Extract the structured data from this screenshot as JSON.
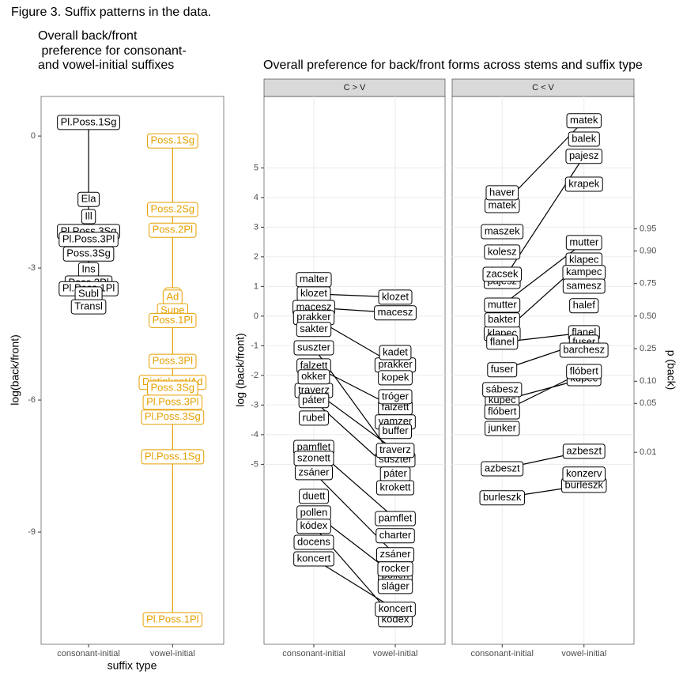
{
  "figure_title": "Figure 3. Suffix patterns in the data.",
  "chart_data": [
    {
      "type": "violin",
      "title_lines": [
        "Overall back/front",
        " preference for consonant-",
        "and vowel-initial suffixes"
      ],
      "x_label": "suffix type",
      "y_label": "log(back/front)",
      "categories": [
        "consonant-initial",
        "vowel-initial"
      ],
      "ylim": [
        -11.55,
        0.9
      ],
      "yticks": [
        0,
        -3,
        -6,
        -9
      ],
      "grid": false,
      "groups": [
        {
          "color": "#000000",
          "labels": [
            "Pl.Poss.1Sg",
            "Ela",
            "Ill",
            "Pl.Poss.3Sg",
            "Pl.Poss.3Pl",
            "Poss.3Sg",
            "Ins",
            "Poss.3Pl",
            "Pl.Poss.1Pl",
            "Subl",
            "Transl"
          ],
          "values": [
            0.31,
            -1.44,
            -1.83,
            -2.17,
            -2.35,
            -2.68,
            -3.04,
            -3.34,
            -3.47,
            -3.59,
            -3.88
          ]
        },
        {
          "color": "#E69F00",
          "labels": [
            "Poss.1Sg",
            "Poss.2Sg",
            "Poss.2Pl",
            "Pl",
            "Ad",
            "Supe",
            "Poss.1Pl",
            "Poss.3Pl",
            "Distinkent/Ad",
            "Poss.3Sg",
            "Pl.Poss.3Pl",
            "Pl.Poss.3Sg",
            "Pl.Poss.1Sg",
            "Pl.Poss.1Pl"
          ],
          "values": [
            -0.11,
            -1.67,
            -2.14,
            -3.61,
            -3.66,
            -3.97,
            -4.19,
            -5.12,
            -5.6,
            -5.73,
            -6.05,
            -6.39,
            -7.29,
            -10.99
          ]
        }
      ]
    },
    {
      "type": "slope",
      "title": "Overall preference for back/front forms across stems and suffix type",
      "y_label": "log (back/front)",
      "y2_label": "p (back)",
      "y2_transform": "logit",
      "categories": [
        "consonant-initial",
        "vowel-initial"
      ],
      "ylim": [
        -11.07,
        7.41
      ],
      "yticks": [
        5,
        4,
        3,
        2,
        1,
        0,
        -1,
        -2,
        -3,
        -4,
        -5
      ],
      "grid": true,
      "y2ticks": [
        0.95,
        {
          "value": 0.9,
          "label": "0.90"
        },
        0.75,
        {
          "value": 0.5,
          "label": "0.50"
        },
        0.25,
        {
          "value": 0.1,
          "label": "0.10"
        },
        0.05,
        0.01
      ],
      "facets": [
        {
          "name": "C > V",
          "stems": [
            {
              "name": "klozet",
              "values": [
                0.75,
                0.64
              ]
            },
            {
              "name": "macesz",
              "values": [
                0.29,
                0.11
              ]
            },
            {
              "name": "prakker",
              "values": [
                -0.05,
                -1.65
              ]
            },
            {
              "name": "suszter",
              "values": [
                -1.07,
                -4.85
              ]
            },
            {
              "name": "falzett",
              "values": [
                -1.68,
                -3.09
              ]
            },
            {
              "name": "traverz",
              "values": [
                -2.51,
                -4.53
              ]
            },
            {
              "name": "páter",
              "values": [
                -2.85,
                -5.33
              ]
            },
            {
              "name": "pamflet",
              "values": [
                -4.43,
                -6.83
              ]
            },
            {
              "name": "zsáner",
              "values": [
                -5.28,
                -8.05
              ]
            },
            {
              "name": "pollen",
              "values": [
                -6.64,
                -8.75
              ]
            },
            {
              "name": "kódex",
              "values": [
                -7.09,
                -10.24
              ]
            },
            {
              "name": "koncert",
              "values": [
                -8.19,
                -9.89
              ]
            },
            {
              "name": "malter",
              "values": [
                1.23,
                null
              ]
            },
            {
              "name": "sakter",
              "values": [
                -0.45,
                null
              ]
            },
            {
              "name": "okker",
              "values": [
                -2.05,
                null
              ]
            },
            {
              "name": "rubel",
              "values": [
                -3.44,
                null
              ]
            },
            {
              "name": "szonett",
              "values": [
                -4.8,
                null
              ]
            },
            {
              "name": "duett",
              "values": [
                -6.08,
                null
              ]
            },
            {
              "name": "docens",
              "values": [
                -7.63,
                null
              ]
            },
            {
              "name": "kadet",
              "values": [
                null,
                -1.23
              ]
            },
            {
              "name": "kopek",
              "values": [
                null,
                -2.08
              ]
            },
            {
              "name": "tróger",
              "values": [
                null,
                -2.72
              ]
            },
            {
              "name": "vamzer",
              "values": [
                null,
                -3.57
              ]
            },
            {
              "name": "buffer",
              "values": [
                null,
                -3.89
              ]
            },
            {
              "name": "krokett",
              "values": [
                null,
                -5.79
              ]
            },
            {
              "name": "charter",
              "values": [
                null,
                -7.41
              ]
            },
            {
              "name": "rocker",
              "values": [
                null,
                -8.53
              ]
            },
            {
              "name": "sláger",
              "values": [
                null,
                -9.12
              ]
            }
          ]
        },
        {
          "name": "C < V",
          "stems": [
            {
              "name": "matek",
              "values": [
                3.73,
                6.59
              ]
            },
            {
              "name": "pajesz",
              "values": [
                1.17,
                5.39
              ]
            },
            {
              "name": "mutter",
              "values": [
                0.37,
                2.48
              ]
            },
            {
              "name": "klapec",
              "values": [
                -0.59,
                1.89
              ]
            },
            {
              "name": "flanel",
              "values": [
                -0.88,
                -0.56
              ]
            },
            {
              "name": "fuser",
              "values": [
                -1.81,
                -0.88
              ]
            },
            {
              "name": "kupec",
              "values": [
                -2.85,
                -2.11
              ]
            },
            {
              "name": "flóbert",
              "values": [
                -3.23,
                -1.87
              ]
            },
            {
              "name": "azbeszt",
              "values": [
                -5.15,
                -4.56
              ]
            },
            {
              "name": "burleszk",
              "values": [
                -6.13,
                -5.71
              ]
            },
            {
              "name": "haver",
              "values": [
                4.16,
                null
              ]
            },
            {
              "name": "maszek",
              "values": [
                2.85,
                null
              ]
            },
            {
              "name": "kolesz",
              "values": [
                2.16,
                null
              ]
            },
            {
              "name": "zacsek",
              "values": [
                1.41,
                null
              ]
            },
            {
              "name": "bakter",
              "values": [
                -0.13,
                null
              ]
            },
            {
              "name": "sábesz",
              "values": [
                -2.48,
                null
              ]
            },
            {
              "name": "junker",
              "values": [
                -3.79,
                null
              ]
            },
            {
              "name": "balek",
              "values": [
                null,
                5.97
              ]
            },
            {
              "name": "krapek",
              "values": [
                null,
                4.45
              ]
            },
            {
              "name": "kampec",
              "values": [
                null,
                1.47
              ]
            },
            {
              "name": "samesz",
              "values": [
                null,
                1.01
              ]
            },
            {
              "name": "halef",
              "values": [
                null,
                0.35
              ]
            },
            {
              "name": "barchesz",
              "values": [
                null,
                -1.15
              ]
            },
            {
              "name": "konzerv",
              "values": [
                null,
                -5.33
              ]
            }
          ]
        }
      ]
    }
  ]
}
